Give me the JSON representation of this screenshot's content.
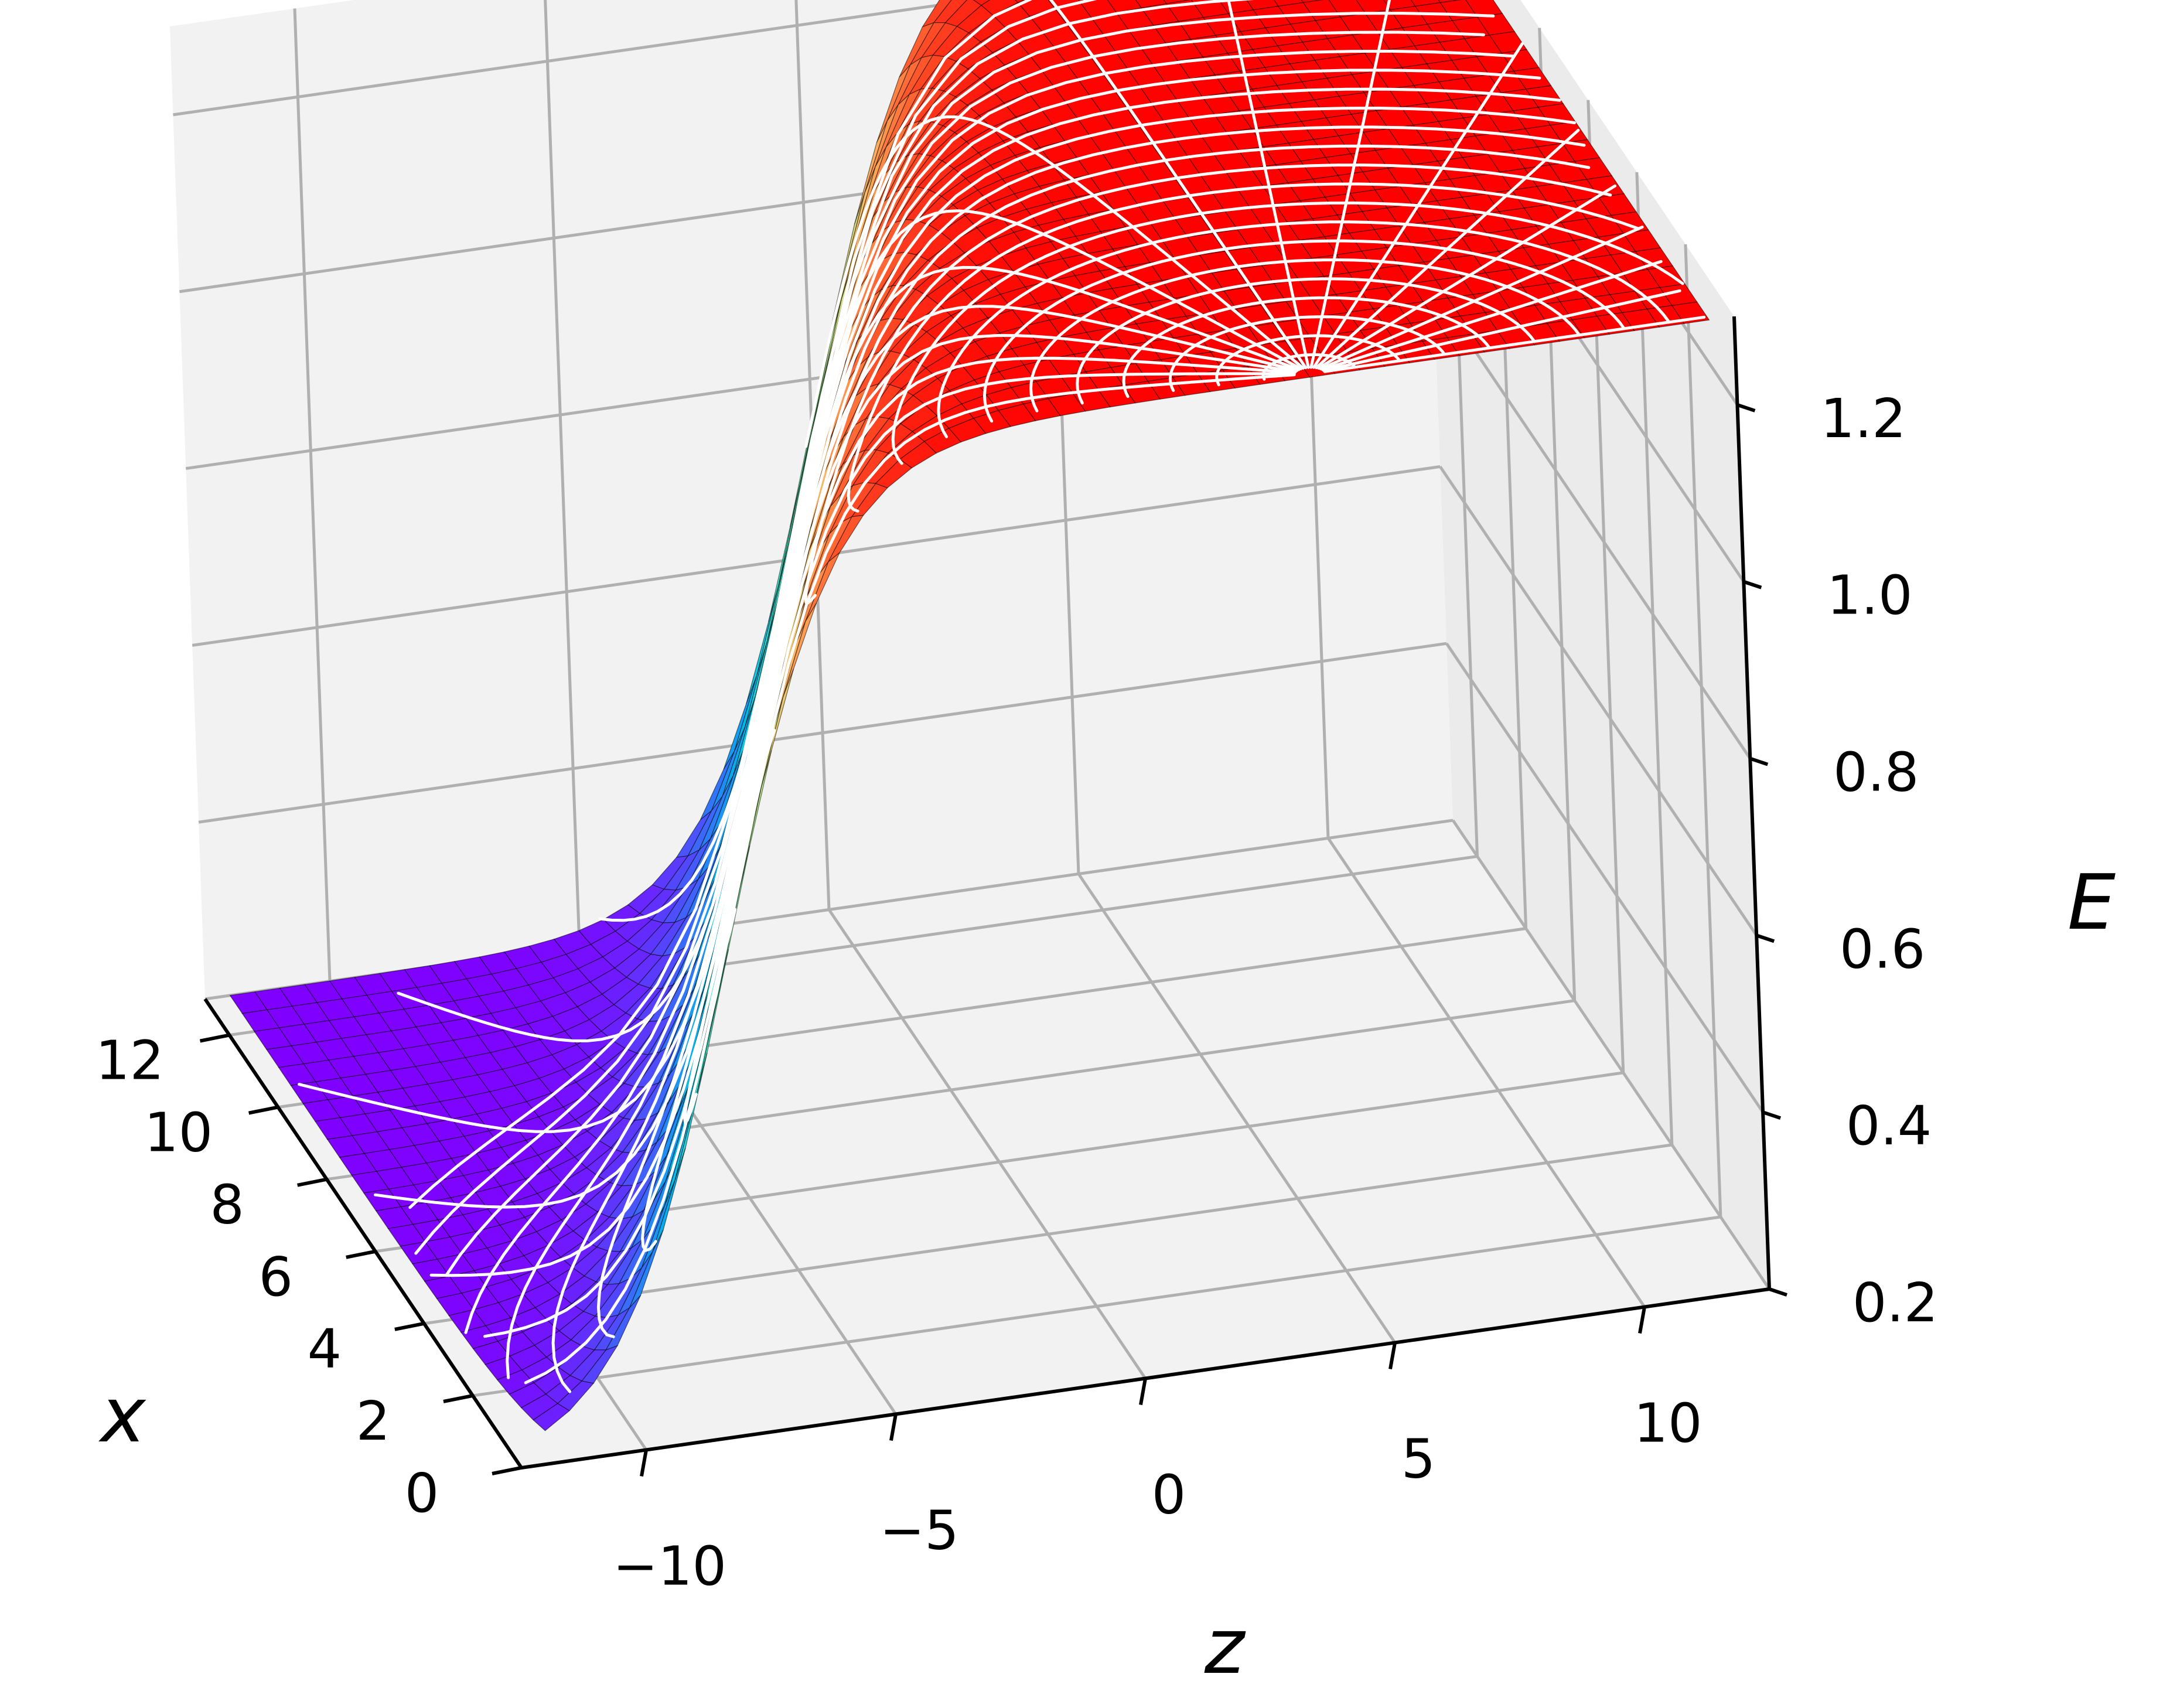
{
  "chart_data": {
    "type": "surface3d",
    "xlabel": "x",
    "ylabel": "z",
    "zlabel": "E",
    "x_ticks": [
      "0",
      "2",
      "4",
      "6",
      "8",
      "10",
      "12"
    ],
    "x_tick_values": [
      0,
      2,
      4,
      6,
      8,
      10,
      12
    ],
    "y_ticks": [
      "−10",
      "−5",
      "0",
      "5",
      "10"
    ],
    "y_tick_values": [
      -10,
      -5,
      0,
      5,
      10
    ],
    "z_ticks": [
      "0.2",
      "0.4",
      "0.6",
      "0.8",
      "1.0",
      "1.2"
    ],
    "z_tick_values": [
      0.2,
      0.4,
      0.6,
      0.8,
      1.0,
      1.2
    ],
    "xlim": [
      0,
      13
    ],
    "ylim": [
      -12.5,
      12.5
    ],
    "zlim": [
      0.2,
      1.3
    ],
    "colormap": "rainbow",
    "grid": true,
    "surface": {
      "x_range": [
        0,
        13
      ],
      "y_range": [
        -12,
        12
      ],
      "E_min": 0.2,
      "E_max": 1.3,
      "front_profile": {
        "comment_free": true,
        "E_low_plateau": 0.2,
        "E_high_plateau": 1.3,
        "front_center_y_at_x0": -8,
        "front_center_y_at_x13": 0,
        "front_width": 1.2,
        "focal_point": {
          "x": 0,
          "y": 4,
          "E": 1.0
        }
      }
    },
    "colors": {
      "pane": "#f2f2f2",
      "pane_side": "#ebebeb",
      "grid": "#b0b0b0",
      "overlay": "#ffffff"
    }
  }
}
